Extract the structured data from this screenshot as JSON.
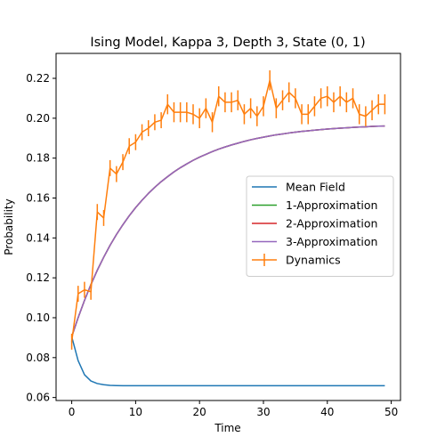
{
  "chart_data": {
    "type": "line",
    "title": "Ising Model, Kappa 3, Depth 3, State (0, 1)",
    "xlabel": "Time",
    "ylabel": "Probability",
    "xlim": [
      -2.45,
      51.45
    ],
    "ylim": [
      0.0585,
      0.2325
    ],
    "xticks": [
      0,
      10,
      20,
      30,
      40,
      50
    ],
    "yticks": [
      0.06,
      0.08,
      0.1,
      0.12,
      0.14,
      0.16,
      0.18,
      0.2,
      0.22
    ],
    "ytick_labels": [
      "0.06",
      "0.08",
      "0.10",
      "0.12",
      "0.14",
      "0.16",
      "0.18",
      "0.20",
      "0.22"
    ],
    "grid": false,
    "legend_position": "center-right",
    "x": [
      0,
      1,
      2,
      3,
      4,
      5,
      6,
      7,
      8,
      9,
      10,
      11,
      12,
      13,
      14,
      15,
      16,
      17,
      18,
      19,
      20,
      21,
      22,
      23,
      24,
      25,
      26,
      27,
      28,
      29,
      30,
      31,
      32,
      33,
      34,
      35,
      36,
      37,
      38,
      39,
      40,
      41,
      42,
      43,
      44,
      45,
      46,
      47,
      48,
      49
    ],
    "series": [
      {
        "name": "Mean Field",
        "color": "#1f77b4",
        "values": [
          0.0905,
          0.0785,
          0.0714,
          0.0683,
          0.067,
          0.0664,
          0.0661,
          0.066,
          0.0659,
          0.0659,
          0.0659,
          0.0659,
          0.0659,
          0.0659,
          0.0659,
          0.0659,
          0.0659,
          0.0659,
          0.0659,
          0.0659,
          0.0659,
          0.0659,
          0.0659,
          0.0659,
          0.0659,
          0.0659,
          0.0659,
          0.0659,
          0.0659,
          0.0659,
          0.0659,
          0.0659,
          0.0659,
          0.0659,
          0.0659,
          0.0659,
          0.0659,
          0.0659,
          0.0659,
          0.0659,
          0.0659,
          0.0659,
          0.0659,
          0.0659,
          0.0659,
          0.0659,
          0.0659,
          0.0659,
          0.0659,
          0.0659
        ]
      },
      {
        "name": "1-Approximation",
        "color": "#2ca02c",
        "values": [
          0.0905,
          0.1,
          0.1087,
          0.1166,
          0.1238,
          0.1303,
          0.1363,
          0.1417,
          0.1466,
          0.1511,
          0.1552,
          0.1589,
          0.1623,
          0.1654,
          0.1682,
          0.1707,
          0.1731,
          0.1752,
          0.1771,
          0.1789,
          0.1805,
          0.1819,
          0.1833,
          0.1845,
          0.1856,
          0.1866,
          0.1875,
          0.1884,
          0.1892,
          0.1899,
          0.1905,
          0.1911,
          0.1917,
          0.1921,
          0.1926,
          0.193,
          0.1934,
          0.1937,
          0.194,
          0.1943,
          0.1946,
          0.1948,
          0.195,
          0.1952,
          0.1954,
          0.1956,
          0.1957,
          0.1959,
          0.196,
          0.1961
        ]
      },
      {
        "name": "2-Approximation",
        "color": "#d62728",
        "values": [
          0.0905,
          0.1,
          0.1087,
          0.1166,
          0.1238,
          0.1303,
          0.1363,
          0.1417,
          0.1466,
          0.1511,
          0.1552,
          0.1589,
          0.1623,
          0.1654,
          0.1682,
          0.1707,
          0.1731,
          0.1752,
          0.1771,
          0.1789,
          0.1805,
          0.1819,
          0.1833,
          0.1845,
          0.1856,
          0.1866,
          0.1875,
          0.1884,
          0.1892,
          0.1899,
          0.1905,
          0.1911,
          0.1917,
          0.1921,
          0.1926,
          0.193,
          0.1934,
          0.1937,
          0.194,
          0.1943,
          0.1946,
          0.1948,
          0.195,
          0.1952,
          0.1954,
          0.1956,
          0.1957,
          0.1959,
          0.196,
          0.1961
        ]
      },
      {
        "name": "3-Approximation",
        "color": "#9467bd",
        "values": [
          0.0905,
          0.1,
          0.1087,
          0.1166,
          0.1238,
          0.1303,
          0.1363,
          0.1417,
          0.1466,
          0.1511,
          0.1552,
          0.1589,
          0.1623,
          0.1654,
          0.1682,
          0.1707,
          0.1731,
          0.1752,
          0.1771,
          0.1789,
          0.1805,
          0.1819,
          0.1833,
          0.1845,
          0.1856,
          0.1866,
          0.1875,
          0.1884,
          0.1892,
          0.1899,
          0.1905,
          0.1911,
          0.1917,
          0.1921,
          0.1926,
          0.193,
          0.1934,
          0.1937,
          0.194,
          0.1943,
          0.1946,
          0.1948,
          0.195,
          0.1952,
          0.1954,
          0.1956,
          0.1957,
          0.1959,
          0.196,
          0.1961
        ]
      },
      {
        "name": "Dynamics",
        "color": "#ff7f0e",
        "errorbars": true,
        "values": [
          0.088,
          0.112,
          0.114,
          0.113,
          0.153,
          0.15,
          0.175,
          0.172,
          0.178,
          0.186,
          0.188,
          0.193,
          0.195,
          0.198,
          0.199,
          0.207,
          0.203,
          0.203,
          0.203,
          0.202,
          0.2,
          0.205,
          0.198,
          0.211,
          0.208,
          0.208,
          0.209,
          0.202,
          0.205,
          0.201,
          0.206,
          0.219,
          0.205,
          0.209,
          0.213,
          0.21,
          0.202,
          0.202,
          0.206,
          0.21,
          0.211,
          0.208,
          0.211,
          0.208,
          0.21,
          0.202,
          0.201,
          0.204,
          0.207,
          0.207
        ],
        "errors": [
          0.004,
          0.004,
          0.004,
          0.004,
          0.004,
          0.004,
          0.004,
          0.004,
          0.004,
          0.004,
          0.004,
          0.004,
          0.004,
          0.004,
          0.004,
          0.005,
          0.005,
          0.005,
          0.005,
          0.005,
          0.005,
          0.005,
          0.005,
          0.005,
          0.005,
          0.005,
          0.005,
          0.005,
          0.005,
          0.005,
          0.005,
          0.005,
          0.005,
          0.005,
          0.005,
          0.005,
          0.005,
          0.005,
          0.005,
          0.005,
          0.005,
          0.005,
          0.005,
          0.005,
          0.005,
          0.005,
          0.005,
          0.005,
          0.005,
          0.005
        ]
      }
    ],
    "legend_order": [
      0,
      1,
      2,
      3,
      4
    ]
  }
}
